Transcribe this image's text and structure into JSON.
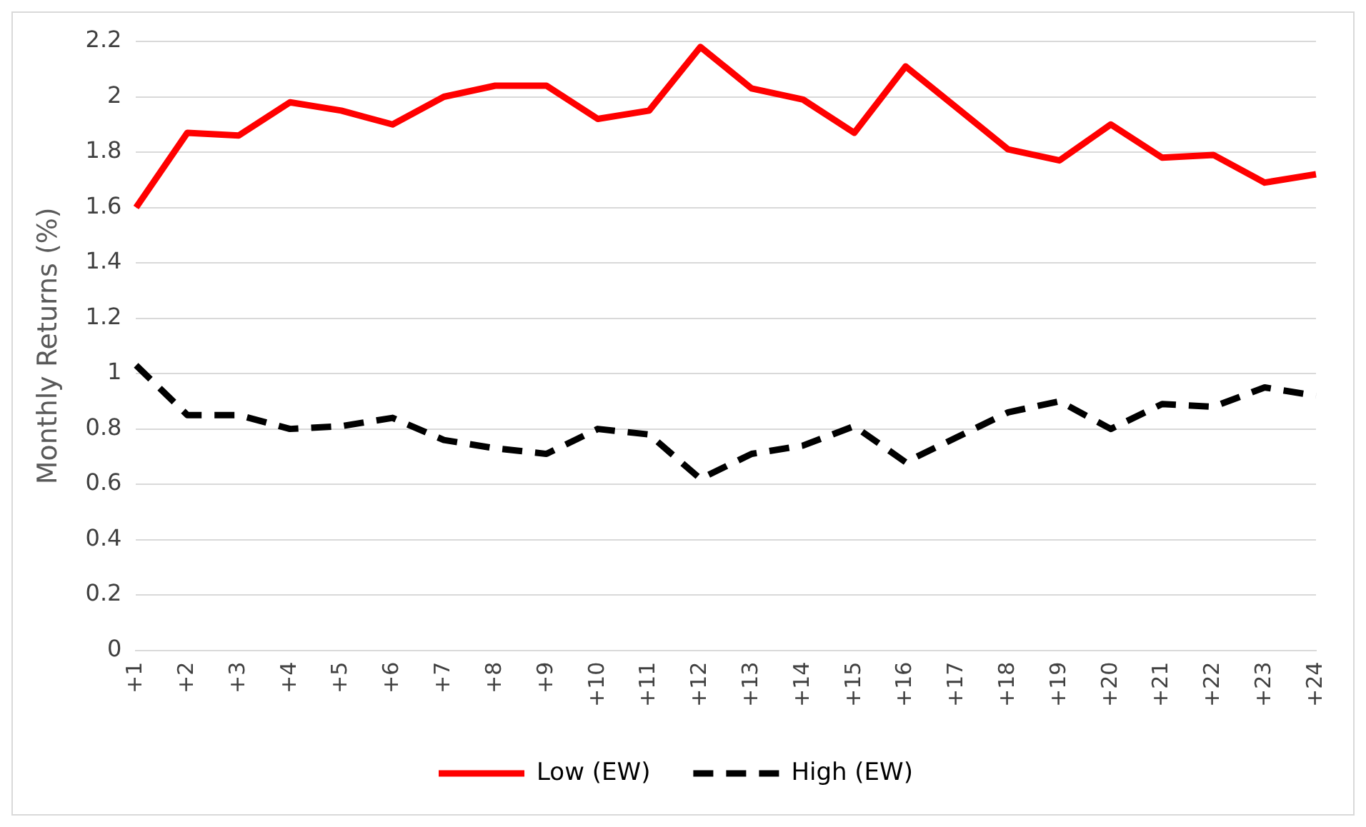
{
  "chart_data": {
    "type": "line",
    "ylabel": "Monthly Returns (%)",
    "categories": [
      "+1",
      "+2",
      "+3",
      "+4",
      "+5",
      "+6",
      "+7",
      "+8",
      "+9",
      "+10",
      "+11",
      "+12",
      "+13",
      "+14",
      "+15",
      "+16",
      "+17",
      "+18",
      "+19",
      "+20",
      "+21",
      "+22",
      "+23",
      "+24"
    ],
    "series": [
      {
        "name": "Low (EW)",
        "color": "#ff0000",
        "line_style": "solid",
        "values": [
          1.6,
          1.87,
          1.86,
          1.98,
          1.95,
          1.9,
          2.0,
          2.04,
          2.04,
          1.92,
          1.95,
          2.18,
          2.03,
          1.99,
          1.87,
          2.11,
          1.96,
          1.81,
          1.77,
          1.9,
          1.78,
          1.79,
          1.69,
          1.72
        ]
      },
      {
        "name": "High (EW)",
        "color": "#000000",
        "line_style": "dashed",
        "values": [
          1.03,
          0.85,
          0.85,
          0.8,
          0.81,
          0.84,
          0.76,
          0.73,
          0.71,
          0.8,
          0.78,
          0.62,
          0.71,
          0.74,
          0.81,
          0.68,
          0.77,
          0.86,
          0.9,
          0.8,
          0.89,
          0.88,
          0.95,
          0.92
        ]
      }
    ],
    "ylim": [
      0,
      2.2
    ],
    "yticks": [
      0,
      0.2,
      0.4,
      0.6,
      0.8,
      1,
      1.2,
      1.4,
      1.6,
      1.8,
      2,
      2.2
    ],
    "grid": "y",
    "legend": "bottom",
    "marker": "none"
  }
}
